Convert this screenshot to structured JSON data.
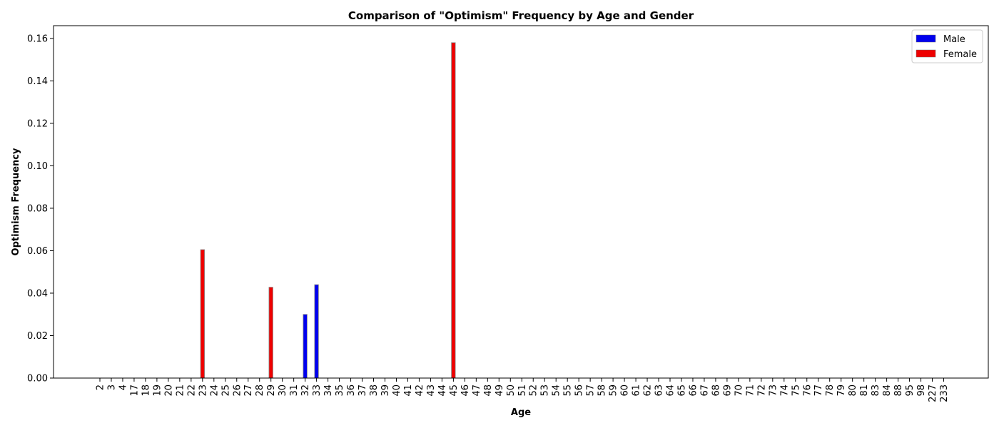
{
  "chart_data": {
    "type": "bar",
    "title": "Comparison of \"Optimism\" Frequency by Age and Gender",
    "xlabel": "Age",
    "ylabel": "Optimism Frequency",
    "ylim": [
      0,
      0.166
    ],
    "yticks": [
      "0.00",
      "0.02",
      "0.04",
      "0.06",
      "0.08",
      "0.10",
      "0.12",
      "0.14",
      "0.16"
    ],
    "categories": [
      "2",
      "3",
      "4",
      "17",
      "18",
      "19",
      "20",
      "21",
      "22",
      "23",
      "24",
      "25",
      "26",
      "27",
      "28",
      "29",
      "30",
      "31",
      "32",
      "33",
      "34",
      "35",
      "36",
      "37",
      "38",
      "39",
      "40",
      "41",
      "42",
      "43",
      "44",
      "45",
      "46",
      "47",
      "48",
      "49",
      "50",
      "51",
      "52",
      "53",
      "54",
      "55",
      "56",
      "57",
      "58",
      "59",
      "60",
      "61",
      "62",
      "63",
      "64",
      "65",
      "66",
      "67",
      "68",
      "69",
      "70",
      "71",
      "72",
      "73",
      "74",
      "75",
      "76",
      "77",
      "78",
      "79",
      "80",
      "81",
      "83",
      "84",
      "88",
      "95",
      "98",
      "227",
      "233"
    ],
    "series": [
      {
        "name": "Male",
        "color": "#0000ee",
        "values": {
          "32": 0.03,
          "33": 0.044
        }
      },
      {
        "name": "Female",
        "color": "#ee0000",
        "values": {
          "23": 0.0605,
          "29": 0.0428,
          "45": 0.158
        }
      }
    ],
    "grid": false,
    "legend_position": "top-right"
  }
}
